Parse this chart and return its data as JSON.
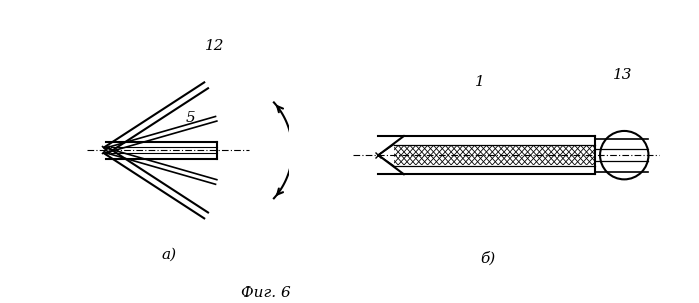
{
  "bg_color": "#ffffff",
  "line_color": "#000000",
  "fig_width": 6.99,
  "fig_height": 3.03,
  "dpi": 100,
  "label_a": "a)",
  "label_b": "б)",
  "fig_label": "Фиг. 6",
  "label_12": "12",
  "label_5": "5",
  "label_1": "1",
  "label_13": "13"
}
